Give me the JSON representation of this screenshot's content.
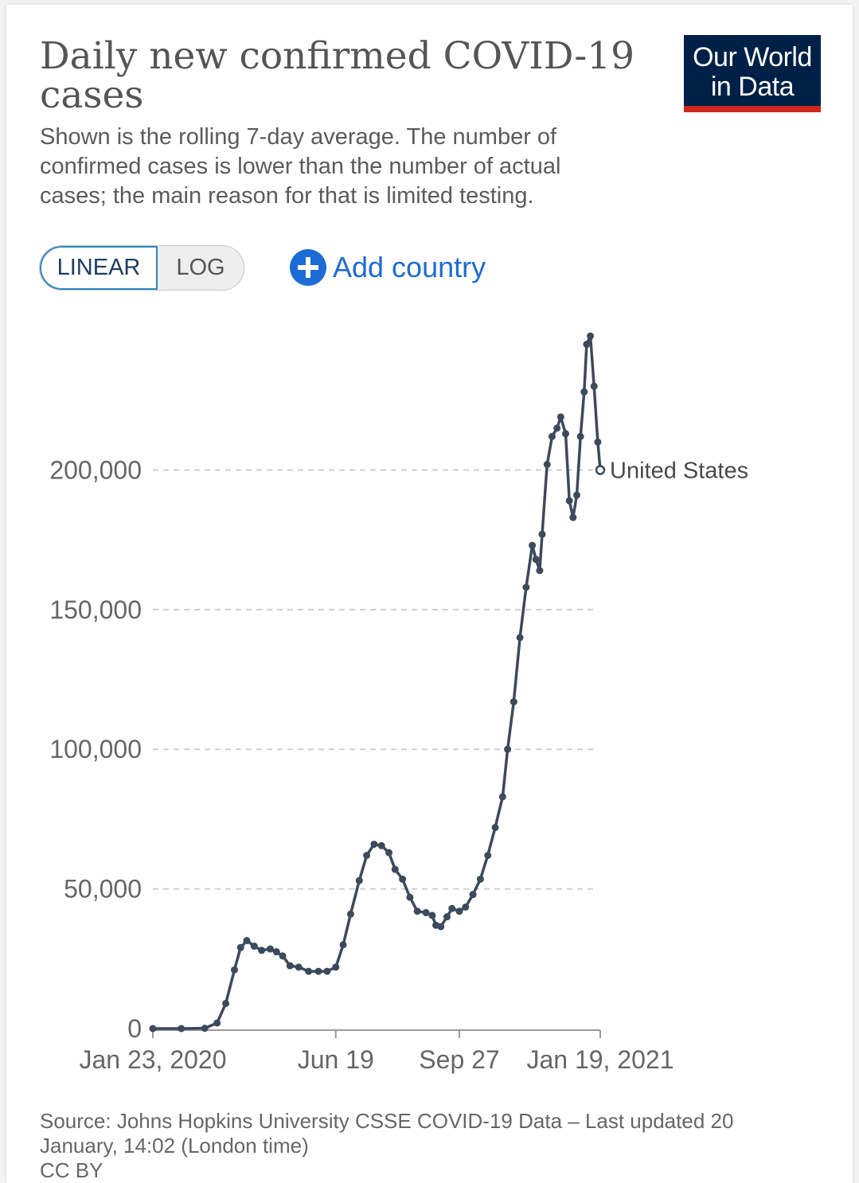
{
  "header": {
    "title": "Daily new confirmed COVID-19 cases",
    "subtitle": "Shown is the rolling 7-day average. The number of confirmed cases is lower than the number of actual cases; the main reason for that is limited testing.",
    "logo_line1": "Our World",
    "logo_line2": "in Data"
  },
  "controls": {
    "linear_label": "LINEAR",
    "log_label": "LOG",
    "add_country_label": "Add country"
  },
  "colors": {
    "line": "#3b4a5c",
    "accent": "#1b6cd6",
    "logo_bg": "#002147",
    "logo_bar": "#ce261e"
  },
  "chart_data": {
    "type": "line",
    "title": "Daily new confirmed COVID-19 cases",
    "xlabel": "",
    "ylabel": "",
    "x_start": "2020-01-23",
    "x_end": "2021-01-19",
    "ylim": [
      0,
      250000
    ],
    "yticks": [
      0,
      50000,
      100000,
      150000,
      200000
    ],
    "ytick_labels": [
      "0",
      "50,000",
      "100,000",
      "150,000",
      "200,000"
    ],
    "xticks": [
      "2020-01-23",
      "2020-06-19",
      "2020-09-27",
      "2021-01-19"
    ],
    "xtick_labels": [
      "Jan 23, 2020",
      "Jun 19",
      "Sep 27",
      "Jan 19, 2021"
    ],
    "grid": "horizontal dashed",
    "series": [
      {
        "name": "United States",
        "points": [
          [
            "2020-01-23",
            0
          ],
          [
            "2020-02-15",
            0
          ],
          [
            "2020-03-05",
            100
          ],
          [
            "2020-03-15",
            2000
          ],
          [
            "2020-03-22",
            9000
          ],
          [
            "2020-03-29",
            21000
          ],
          [
            "2020-04-03",
            29000
          ],
          [
            "2020-04-08",
            31500
          ],
          [
            "2020-04-14",
            29500
          ],
          [
            "2020-04-20",
            28000
          ],
          [
            "2020-04-27",
            28500
          ],
          [
            "2020-05-02",
            27500
          ],
          [
            "2020-05-07",
            26000
          ],
          [
            "2020-05-13",
            22500
          ],
          [
            "2020-05-20",
            22000
          ],
          [
            "2020-05-28",
            20500
          ],
          [
            "2020-06-05",
            20500
          ],
          [
            "2020-06-12",
            20500
          ],
          [
            "2020-06-19",
            22000
          ],
          [
            "2020-06-25",
            30000
          ],
          [
            "2020-07-01",
            41000
          ],
          [
            "2020-07-08",
            53000
          ],
          [
            "2020-07-14",
            62000
          ],
          [
            "2020-07-20",
            66000
          ],
          [
            "2020-07-26",
            65500
          ],
          [
            "2020-08-01",
            63000
          ],
          [
            "2020-08-06",
            57000
          ],
          [
            "2020-08-12",
            53500
          ],
          [
            "2020-08-18",
            47000
          ],
          [
            "2020-08-24",
            42000
          ],
          [
            "2020-08-31",
            41500
          ],
          [
            "2020-09-05",
            40500
          ],
          [
            "2020-09-08",
            37000
          ],
          [
            "2020-09-12",
            36500
          ],
          [
            "2020-09-17",
            40000
          ],
          [
            "2020-09-21",
            43000
          ],
          [
            "2020-09-27",
            42000
          ],
          [
            "2020-10-02",
            43500
          ],
          [
            "2020-10-08",
            48000
          ],
          [
            "2020-10-14",
            53500
          ],
          [
            "2020-10-20",
            62000
          ],
          [
            "2020-10-26",
            72000
          ],
          [
            "2020-11-01",
            83000
          ],
          [
            "2020-11-05",
            100000
          ],
          [
            "2020-11-10",
            117000
          ],
          [
            "2020-11-15",
            140000
          ],
          [
            "2020-11-20",
            158000
          ],
          [
            "2020-11-25",
            173000
          ],
          [
            "2020-11-28",
            168000
          ],
          [
            "2020-12-01",
            164000
          ],
          [
            "2020-12-03",
            177000
          ],
          [
            "2020-12-07",
            202000
          ],
          [
            "2020-12-11",
            212000
          ],
          [
            "2020-12-15",
            215000
          ],
          [
            "2020-12-18",
            219000
          ],
          [
            "2020-12-22",
            213000
          ],
          [
            "2020-12-25",
            189000
          ],
          [
            "2020-12-28",
            183000
          ],
          [
            "2020-12-31",
            191000
          ],
          [
            "2021-01-03",
            212000
          ],
          [
            "2021-01-06",
            228000
          ],
          [
            "2021-01-08",
            245000
          ],
          [
            "2021-01-11",
            248000
          ],
          [
            "2021-01-14",
            230000
          ],
          [
            "2021-01-17",
            210000
          ],
          [
            "2021-01-19",
            200000
          ]
        ]
      }
    ]
  },
  "footer": {
    "source": "Source: Johns Hopkins University CSSE COVID-19 Data – Last updated 20 January, 14:02 (London time)",
    "license": "CC BY"
  }
}
